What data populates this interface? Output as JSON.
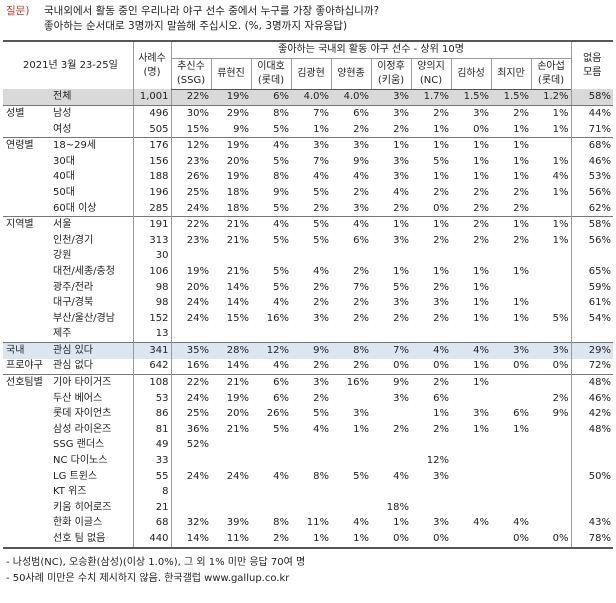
{
  "question": {
    "label": "질문)",
    "line1": "국내외에서 활동 중인 우리나라 야구 선수 중에서 누구를 가장 좋아하십니까?",
    "line2": "좋아하는 순서대로 3명까지 말씀해 주십시오. (%, 3명까지 자유응답)"
  },
  "header": {
    "date": "2021년 3월 23-25일",
    "cases": "사례수",
    "cases_unit": "(명)",
    "group_title": "좋아하는 국내외 활동 야구 선수 - 상위 10명",
    "players": [
      {
        "name": "추신수",
        "sub": "(SSG)"
      },
      {
        "name": "류현진",
        "sub": ""
      },
      {
        "name": "이대호",
        "sub": "(롯데)"
      },
      {
        "name": "김광현",
        "sub": ""
      },
      {
        "name": "양현종",
        "sub": ""
      },
      {
        "name": "이정후",
        "sub": "(키움)"
      },
      {
        "name": "양의지",
        "sub": "(NC)"
      },
      {
        "name": "김하성",
        "sub": ""
      },
      {
        "name": "최지만",
        "sub": ""
      },
      {
        "name": "손아섭",
        "sub": "(롯데)"
      }
    ],
    "none": "없음",
    "none2": "모름"
  },
  "rows": [
    {
      "g": "",
      "s": "전체",
      "n": "1,001",
      "v": [
        "22%",
        "19%",
        "6%",
        "4.0%",
        "4.0%",
        "3%",
        "1.7%",
        "1.5%",
        "1.5%",
        "1.2%"
      ],
      "x": "58%",
      "cls": "total"
    },
    {
      "g": "성별",
      "s": "남성",
      "n": "496",
      "v": [
        "30%",
        "29%",
        "8%",
        "7%",
        "6%",
        "3%",
        "2%",
        "3%",
        "2%",
        "1%"
      ],
      "x": "44%",
      "cls": "grp-start"
    },
    {
      "g": "",
      "s": "여성",
      "n": "505",
      "v": [
        "15%",
        "9%",
        "5%",
        "1%",
        "2%",
        "2%",
        "1%",
        "0%",
        "1%",
        "1%"
      ],
      "x": "71%",
      "cls": ""
    },
    {
      "g": "연령별",
      "s": "18~29세",
      "n": "176",
      "v": [
        "12%",
        "19%",
        "4%",
        "3%",
        "3%",
        "1%",
        "1%",
        "1%",
        "1%",
        ""
      ],
      "x": "68%",
      "cls": "grp-start"
    },
    {
      "g": "",
      "s": "30대",
      "n": "156",
      "v": [
        "23%",
        "20%",
        "5%",
        "7%",
        "9%",
        "3%",
        "5%",
        "1%",
        "1%",
        "1%"
      ],
      "x": "46%",
      "cls": ""
    },
    {
      "g": "",
      "s": "40대",
      "n": "188",
      "v": [
        "26%",
        "19%",
        "8%",
        "4%",
        "4%",
        "3%",
        "1%",
        "1%",
        "1%",
        "4%"
      ],
      "x": "53%",
      "cls": ""
    },
    {
      "g": "",
      "s": "50대",
      "n": "196",
      "v": [
        "25%",
        "18%",
        "9%",
        "5%",
        "2%",
        "4%",
        "2%",
        "2%",
        "2%",
        "1%"
      ],
      "x": "56%",
      "cls": ""
    },
    {
      "g": "",
      "s": "60대 이상",
      "n": "285",
      "v": [
        "24%",
        "18%",
        "5%",
        "2%",
        "3%",
        "2%",
        "0%",
        "2%",
        "2%",
        ""
      ],
      "x": "62%",
      "cls": ""
    },
    {
      "g": "지역별",
      "s": "서울",
      "n": "191",
      "v": [
        "22%",
        "21%",
        "4%",
        "5%",
        "4%",
        "1%",
        "1%",
        "2%",
        "1%",
        "1%"
      ],
      "x": "58%",
      "cls": "grp-start"
    },
    {
      "g": "",
      "s": "인천/경기",
      "n": "313",
      "v": [
        "23%",
        "21%",
        "5%",
        "5%",
        "6%",
        "3%",
        "2%",
        "2%",
        "2%",
        "1%"
      ],
      "x": "56%",
      "cls": ""
    },
    {
      "g": "",
      "s": "강원",
      "n": "30",
      "v": [
        "",
        "",
        "",
        "",
        "",
        "",
        "",
        "",
        "",
        ""
      ],
      "x": "",
      "cls": ""
    },
    {
      "g": "",
      "s": "대전/세종/충청",
      "n": "106",
      "v": [
        "19%",
        "21%",
        "5%",
        "4%",
        "2%",
        "1%",
        "1%",
        "1%",
        "1%",
        ""
      ],
      "x": "65%",
      "cls": ""
    },
    {
      "g": "",
      "s": "광주/전라",
      "n": "98",
      "v": [
        "20%",
        "14%",
        "5%",
        "2%",
        "7%",
        "5%",
        "2%",
        "1%",
        "",
        ""
      ],
      "x": "59%",
      "cls": ""
    },
    {
      "g": "",
      "s": "대구/경북",
      "n": "98",
      "v": [
        "24%",
        "14%",
        "4%",
        "2%",
        "2%",
        "3%",
        "3%",
        "1%",
        "1%",
        ""
      ],
      "x": "61%",
      "cls": ""
    },
    {
      "g": "",
      "s": "부산/울산/경남",
      "n": "152",
      "v": [
        "24%",
        "15%",
        "16%",
        "3%",
        "2%",
        "2%",
        "2%",
        "1%",
        "1%",
        "5%"
      ],
      "x": "54%",
      "cls": ""
    },
    {
      "g": "",
      "s": "제주",
      "n": "13",
      "v": [
        "",
        "",
        "",
        "",
        "",
        "",
        "",
        "",
        "",
        ""
      ],
      "x": "",
      "cls": ""
    },
    {
      "g": "국내",
      "s": "관심 있다",
      "n": "341",
      "v": [
        "35%",
        "28%",
        "12%",
        "9%",
        "8%",
        "7%",
        "4%",
        "4%",
        "3%",
        "3%"
      ],
      "x": "29%",
      "cls": "grp-start hl"
    },
    {
      "g": "프로야구",
      "s": "관심 없다",
      "n": "642",
      "v": [
        "16%",
        "14%",
        "4%",
        "2%",
        "2%",
        "0%",
        "0%",
        "1%",
        "0%",
        "0%"
      ],
      "x": "72%",
      "cls": ""
    },
    {
      "g": "선호팀별",
      "s": "기아 타이거즈",
      "n": "108",
      "v": [
        "22%",
        "21%",
        "6%",
        "3%",
        "16%",
        "9%",
        "2%",
        "1%",
        "",
        ""
      ],
      "x": "48%",
      "cls": "grp-start"
    },
    {
      "g": "",
      "s": "두산 베어스",
      "n": "53",
      "v": [
        "24%",
        "19%",
        "6%",
        "2%",
        "",
        "3%",
        "6%",
        "",
        "",
        "2%"
      ],
      "x": "46%",
      "cls": ""
    },
    {
      "g": "",
      "s": "롯데 자이언츠",
      "n": "86",
      "v": [
        "25%",
        "20%",
        "26%",
        "5%",
        "3%",
        "",
        "1%",
        "3%",
        "6%",
        "9%"
      ],
      "x": "42%",
      "cls": ""
    },
    {
      "g": "",
      "s": "삼성 라이온즈",
      "n": "81",
      "v": [
        "36%",
        "21%",
        "5%",
        "4%",
        "1%",
        "2%",
        "2%",
        "1%",
        "1%",
        ""
      ],
      "x": "48%",
      "cls": ""
    },
    {
      "g": "",
      "s": "SSG 랜더스",
      "n": "49",
      "v": [
        "52%",
        "",
        "",
        "",
        "",
        "",
        "",
        "",
        "",
        ""
      ],
      "x": "",
      "cls": ""
    },
    {
      "g": "",
      "s": "NC 다이노스",
      "n": "33",
      "v": [
        "",
        "",
        "",
        "",
        "",
        "",
        "12%",
        "",
        "",
        ""
      ],
      "x": "",
      "cls": ""
    },
    {
      "g": "",
      "s": "LG 트윈스",
      "n": "55",
      "v": [
        "24%",
        "24%",
        "4%",
        "8%",
        "5%",
        "4%",
        "3%",
        "",
        "",
        ""
      ],
      "x": "50%",
      "cls": ""
    },
    {
      "g": "",
      "s": "KT 위즈",
      "n": "8",
      "v": [
        "",
        "",
        "",
        "",
        "",
        "",
        "",
        "",
        "",
        ""
      ],
      "x": "",
      "cls": ""
    },
    {
      "g": "",
      "s": "키움 히어로즈",
      "n": "21",
      "v": [
        "",
        "",
        "",
        "",
        "",
        "18%",
        "",
        "",
        "",
        ""
      ],
      "x": "",
      "cls": ""
    },
    {
      "g": "",
      "s": "한화 이글스",
      "n": "68",
      "v": [
        "32%",
        "39%",
        "8%",
        "11%",
        "4%",
        "1%",
        "3%",
        "4%",
        "4%",
        ""
      ],
      "x": "43%",
      "cls": ""
    },
    {
      "g": "",
      "s": "선호 팀 없음",
      "n": "440",
      "v": [
        "14%",
        "11%",
        "2%",
        "1%",
        "1%",
        "0%",
        "0%",
        "",
        "0%",
        "0%"
      ],
      "x": "78%",
      "cls": "last"
    }
  ],
  "notes": [
    "- 나성범(NC), 오승환(삼성)(이상 1.0%), 그 외 1% 미만 응답 70여 명",
    "- 50사례 미만은 수치 제시하지 않음. 한국갤럽 www.gallup.co.kr"
  ]
}
